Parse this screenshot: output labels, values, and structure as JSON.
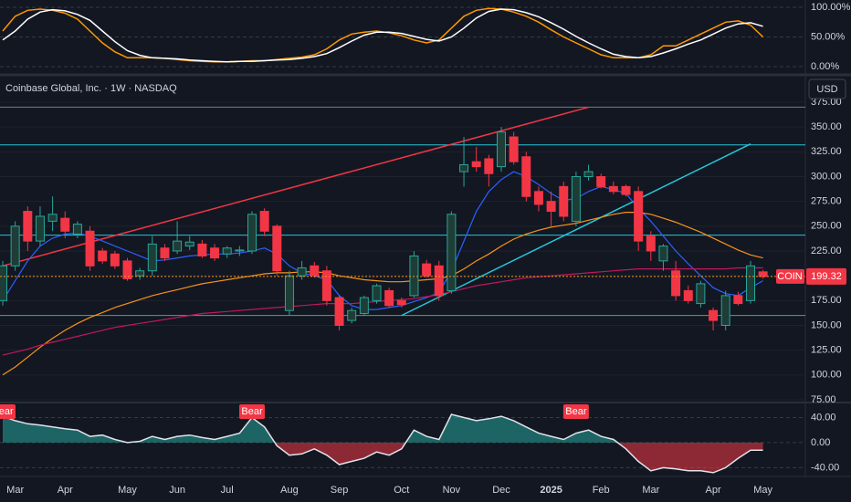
{
  "header": {
    "title": "Coinbase Global, Inc. · 1W · NASDAQ",
    "currency": "USD"
  },
  "chart_data": [
    {
      "type": "line",
      "ylim": [
        0,
        100
      ],
      "yticks": [
        {
          "value": 100,
          "label": "100.00%"
        },
        {
          "value": 50,
          "label": "50.00%"
        },
        {
          "value": 0,
          "label": "0.00%"
        }
      ],
      "series": [
        {
          "color": "#ff9800",
          "values": [
            60,
            85,
            95,
            97,
            95,
            90,
            80,
            60,
            40,
            25,
            15,
            15,
            15,
            14,
            12,
            10,
            9,
            8,
            8,
            9,
            10,
            10,
            12,
            14,
            16,
            20,
            30,
            45,
            55,
            58,
            60,
            57,
            52,
            45,
            40,
            45,
            65,
            85,
            95,
            98,
            97,
            92,
            85,
            75,
            62,
            50,
            40,
            30,
            20,
            15,
            15,
            15,
            20,
            35,
            35,
            45,
            55,
            65,
            75,
            77,
            70,
            50
          ]
        },
        {
          "color": "#ffffff",
          "values": [
            45,
            60,
            80,
            92,
            96,
            94,
            88,
            78,
            60,
            42,
            27,
            19,
            15,
            14,
            13,
            11,
            10,
            9,
            8,
            9,
            9,
            10,
            11,
            12,
            14,
            17,
            22,
            32,
            43,
            53,
            58,
            58,
            56,
            51,
            46,
            43,
            50,
            65,
            82,
            93,
            97,
            96,
            91,
            84,
            74,
            63,
            51,
            40,
            30,
            21,
            17,
            15,
            17,
            23,
            30,
            38,
            45,
            55,
            65,
            72,
            74,
            68
          ]
        }
      ]
    },
    {
      "type": "candlestick",
      "ylim": [
        75,
        375
      ],
      "yticks": [
        {
          "value": 75,
          "label": "75.00"
        },
        {
          "value": 100,
          "label": "100.00"
        },
        {
          "value": 125,
          "label": "125.00"
        },
        {
          "value": 150,
          "label": "150.00"
        },
        {
          "value": 175,
          "label": "175.00"
        },
        {
          "value": 200,
          "label": "200.00"
        },
        {
          "value": 225,
          "label": "225.00"
        },
        {
          "value": 250,
          "label": "250.00"
        },
        {
          "value": 275,
          "label": "275.00"
        },
        {
          "value": 300,
          "label": "300.00"
        },
        {
          "value": 325,
          "label": "325.00"
        },
        {
          "value": 350,
          "label": "350.00"
        },
        {
          "value": 375,
          "label": "375.00"
        }
      ],
      "categories": [
        null,
        "Mar",
        null,
        null,
        null,
        "Apr",
        null,
        null,
        null,
        null,
        "May",
        null,
        null,
        null,
        "Jun",
        null,
        null,
        null,
        "Jul",
        null,
        null,
        null,
        null,
        "Aug",
        null,
        null,
        null,
        "Sep",
        null,
        null,
        null,
        null,
        "Oct",
        null,
        null,
        null,
        "Nov",
        null,
        null,
        null,
        "Dec",
        null,
        null,
        null,
        "2025",
        null,
        null,
        null,
        "Feb",
        null,
        null,
        null,
        "Mar",
        null,
        null,
        null,
        null,
        "Apr",
        null,
        null,
        null,
        "May"
      ],
      "open": [
        175,
        210,
        265,
        235,
        255,
        258,
        242,
        245,
        225,
        222,
        215,
        200,
        205,
        228,
        225,
        230,
        232,
        228,
        222,
        225,
        225,
        265,
        250,
        165,
        200,
        210,
        205,
        178,
        155,
        162,
        175,
        185,
        175,
        180,
        212,
        210,
        185,
        305,
        315,
        318,
        310,
        340,
        320,
        285,
        275,
        290,
        255,
        300,
        300,
        290,
        290,
        285,
        240,
        215,
        205,
        185,
        172,
        165,
        150,
        180,
        175,
        204
      ],
      "high": [
        215,
        255,
        270,
        270,
        280,
        265,
        255,
        250,
        228,
        225,
        218,
        208,
        240,
        232,
        255,
        240,
        236,
        232,
        230,
        230,
        265,
        268,
        252,
        205,
        215,
        214,
        210,
        180,
        168,
        180,
        192,
        188,
        178,
        225,
        216,
        215,
        265,
        340,
        330,
        322,
        350,
        345,
        325,
        290,
        285,
        295,
        305,
        312,
        303,
        295,
        292,
        290,
        245,
        232,
        215,
        190,
        195,
        168,
        185,
        184,
        215,
        206
      ],
      "low": [
        170,
        205,
        225,
        230,
        245,
        238,
        238,
        205,
        212,
        207,
        195,
        196,
        200,
        215,
        222,
        226,
        218,
        215,
        218,
        220,
        222,
        240,
        200,
        160,
        196,
        198,
        170,
        145,
        152,
        160,
        172,
        168,
        168,
        178,
        198,
        175,
        182,
        290,
        305,
        290,
        305,
        312,
        275,
        265,
        250,
        255,
        250,
        296,
        288,
        282,
        280,
        225,
        215,
        205,
        175,
        172,
        168,
        145,
        145,
        170,
        172,
        197
      ],
      "close": [
        210,
        250,
        235,
        260,
        262,
        245,
        252,
        210,
        215,
        210,
        197,
        205,
        232,
        218,
        235,
        234,
        220,
        218,
        228,
        226,
        262,
        245,
        205,
        200,
        208,
        200,
        175,
        150,
        165,
        178,
        190,
        170,
        171,
        220,
        200,
        180,
        262,
        312,
        310,
        303,
        345,
        315,
        280,
        272,
        265,
        260,
        300,
        305,
        290,
        285,
        282,
        235,
        225,
        230,
        180,
        175,
        192,
        155,
        180,
        172,
        210,
        199.32
      ],
      "up_color": "#26a69a",
      "down_color": "#f23645",
      "series": [
        {
          "color": "#2962ff",
          "values": [
            175,
            195,
            215,
            230,
            238,
            242,
            243,
            240,
            235,
            230,
            225,
            220,
            215,
            216,
            218,
            220,
            221,
            222,
            222,
            223,
            225,
            228,
            222,
            210,
            203,
            200,
            196,
            180,
            170,
            166,
            166,
            168,
            170,
            174,
            178,
            183,
            205,
            235,
            265,
            285,
            297,
            305,
            300,
            292,
            283,
            276,
            278,
            285,
            290,
            287,
            283,
            268,
            255,
            240,
            225,
            212,
            200,
            188,
            182,
            180,
            188,
            195
          ]
        },
        {
          "color": "#f7931a",
          "values": [
            100,
            108,
            118,
            128,
            137,
            145,
            152,
            158,
            163,
            168,
            172,
            176,
            180,
            183,
            186,
            189,
            192,
            194,
            196,
            198,
            200,
            202,
            203,
            203,
            204,
            204,
            203,
            200,
            198,
            196,
            195,
            194,
            194,
            195,
            196,
            197,
            200,
            207,
            215,
            222,
            230,
            237,
            242,
            246,
            249,
            251,
            253,
            256,
            259,
            262,
            264,
            264,
            262,
            258,
            254,
            249,
            244,
            238,
            232,
            226,
            221,
            218
          ]
        },
        {
          "color": "#c2185b",
          "values": [
            120,
            123,
            126,
            130,
            133,
            136,
            139,
            142,
            145,
            148,
            150,
            152,
            154,
            156,
            158,
            160,
            162,
            163,
            164,
            165,
            166,
            167,
            168,
            169,
            170,
            171,
            172,
            172,
            172,
            173,
            174,
            175,
            176,
            177,
            179,
            181,
            184,
            187,
            190,
            192,
            194,
            196,
            198,
            199,
            200,
            201,
            202,
            203,
            204,
            205,
            206,
            207,
            207,
            207,
            207,
            207,
            207,
            207,
            207,
            208,
            208,
            208
          ]
        }
      ],
      "levels": [
        {
          "value": 370,
          "color": "#787b86"
        },
        {
          "value": 332,
          "color": "#26c6da"
        },
        {
          "value": 241,
          "color": "#26c6da"
        },
        {
          "value": 160,
          "color": "#4caf50"
        }
      ],
      "trendlines": [
        {
          "x": [
            0,
            47
          ],
          "y": [
            210,
            370
          ],
          "color": "#f23645"
        },
        {
          "x": [
            32,
            60
          ],
          "y": [
            160,
            333
          ],
          "color": "#26c6da"
        }
      ],
      "symbol": "COIN",
      "last_price": 199.32
    },
    {
      "type": "line",
      "ylim": [
        -54,
        62.5
      ],
      "yticks": [
        {
          "value": 40,
          "label": "40.00"
        },
        {
          "value": 0,
          "label": "0.00"
        },
        {
          "value": -40,
          "label": "-40.00"
        }
      ],
      "series": [
        {
          "color": "#e0e3eb",
          "values": [
            42,
            35,
            30,
            28,
            25,
            22,
            20,
            10,
            12,
            5,
            0,
            2,
            10,
            5,
            10,
            12,
            8,
            5,
            10,
            15,
            40,
            25,
            -5,
            -20,
            -18,
            -10,
            -20,
            -35,
            -30,
            -25,
            -15,
            -20,
            -10,
            20,
            10,
            5,
            45,
            40,
            35,
            38,
            42,
            35,
            25,
            15,
            10,
            5,
            15,
            20,
            10,
            5,
            -10,
            -30,
            -45,
            -40,
            -42,
            -45,
            -45,
            -48,
            -40,
            -25,
            -12,
            -12
          ]
        }
      ],
      "positive_color": "#26a69a",
      "negative_color": "#f23645",
      "annotations": [
        "Bear",
        "Bear",
        "Bear"
      ]
    }
  ]
}
